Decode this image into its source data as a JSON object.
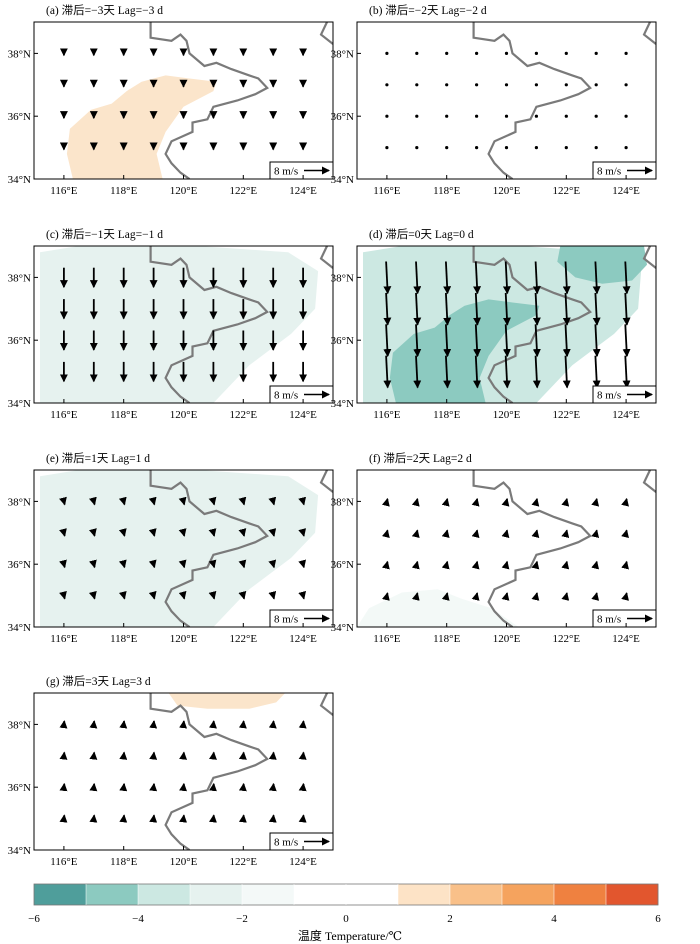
{
  "lat_ticks": [
    "34°N",
    "36°N",
    "38°N"
  ],
  "lon_ticks": [
    "116°E",
    "118°E",
    "120°E",
    "122°E",
    "124°E"
  ],
  "scale_label": "8 m/s",
  "panels": [
    {
      "title": "(a) 滞后=−3天 Lag=−3 d",
      "u": 0.0,
      "v": -1.0,
      "shading": [
        {
          "level": 1,
          "color": "#fbe5cb",
          "region": "west-central"
        }
      ]
    },
    {
      "title": "(b) 滞后=−2天 Lag=−2 d",
      "u": 0.0,
      "v": -0.4,
      "shading": []
    },
    {
      "title": "(c) 滞后=−1天 Lag=−1 d",
      "u": 0.0,
      "v": -5.0,
      "shading": [
        {
          "level": -2,
          "color": "#e6f2ef",
          "region": "most"
        }
      ]
    },
    {
      "title": "(d) 滞后=0天 Lag=0 d",
      "u": 0.4,
      "v": -8.2,
      "shading": [
        {
          "level": -2,
          "color": "#cce8e2",
          "region": "most"
        },
        {
          "level": -4,
          "color": "#8ccac0",
          "region": "west-central, north-east"
        }
      ]
    },
    {
      "title": "(e) 滞后=1天 Lag=1 d",
      "u": 0.4,
      "v": -1.6,
      "shading": [
        {
          "level": -2,
          "color": "#e6f2ef",
          "region": "most"
        }
      ]
    },
    {
      "title": "(f) 滞后=2天 Lag=2 d",
      "u": 0.3,
      "v": 1.3,
      "shading": [
        {
          "level": -1,
          "color": "#f3f9f7",
          "region": "south-west"
        }
      ]
    },
    {
      "title": "(g) 滞后=3天 Lag=3 d",
      "u": 0.2,
      "v": 1.7,
      "shading": [
        {
          "level": 1,
          "color": "#fbe5cb",
          "region": "north-central"
        }
      ]
    }
  ],
  "colorbar": {
    "title": "温度 Temperature/℃",
    "tick_labels": [
      "−6",
      "−4",
      "−2",
      "0",
      "2",
      "4",
      "6"
    ],
    "colors": [
      "#4f9e9b",
      "#8ccac0",
      "#cce8e2",
      "#e6f2ef",
      "#f4f9f8",
      "#ffffff",
      "#ffffff",
      "#fde3c6",
      "#f9c089",
      "#f5a35e",
      "#ef8140",
      "#e2562e"
    ]
  }
}
